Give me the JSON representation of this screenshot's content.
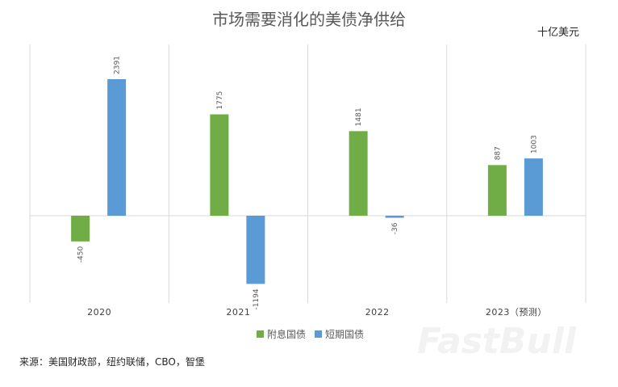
{
  "chart_data": {
    "type": "bar",
    "title": "市场需要消化的美债净供给",
    "unit": "十亿美元",
    "categories": [
      "2020",
      "2021",
      "2022",
      "2023（预测）"
    ],
    "series": [
      {
        "name": "附息国债",
        "color": "#70ad47",
        "values": [
          -450,
          1775,
          1481,
          887
        ]
      },
      {
        "name": "短期国债",
        "color": "#5b9bd5",
        "values": [
          2391,
          -1194,
          -36,
          1003
        ]
      }
    ],
    "grid": true,
    "legend": "bottom"
  },
  "source": "来源：美国财政部，纽约联储，CBO，智堡",
  "watermark": "FastBull"
}
